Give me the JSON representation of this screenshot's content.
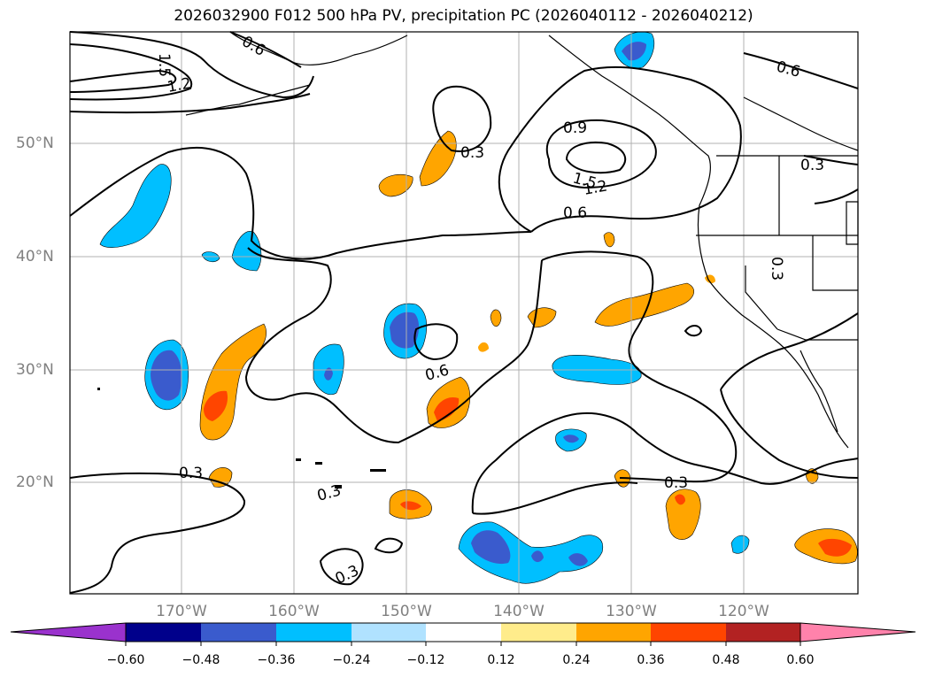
{
  "title": "2026032900 F012 500 hPa PV, precipitation PC (2026040112 - 2026040212)",
  "lat_labels": [
    "50°N",
    "40°N",
    "30°N",
    "20°N"
  ],
  "lon_labels": [
    "170°W",
    "160°W",
    "150°W",
    "140°W",
    "130°W",
    "120°W"
  ],
  "contour_labels": [
    "0.6",
    "1.5",
    "1.2",
    "0.3",
    "0.9",
    "1.5",
    "1.2",
    "0.6",
    "0.6",
    "0.3",
    "0.3",
    "0.6",
    "0.3",
    "0.3",
    "0.3",
    "0.3"
  ],
  "colorbar": {
    "ticks": [
      "−0.60",
      "−0.48",
      "−0.36",
      "−0.24",
      "−0.12",
      "0.12",
      "0.24",
      "0.36",
      "0.48",
      "0.60"
    ],
    "colors": [
      "#9a32cd",
      "#00008b",
      "#3a5bcd",
      "#00bfff",
      "#b0e2ff",
      "#ffffff",
      "#ffec8b",
      "#ffa500",
      "#ff4500",
      "#b22222",
      "#ff82ab"
    ]
  },
  "palette": {
    "neg_dark": "#3a5bcd",
    "neg_mid": "#00bfff",
    "neg_light": "#b0e2ff",
    "pos_light": "#ffec8b",
    "pos_mid": "#ffa500",
    "pos_dark": "#ff4500",
    "grid": "#b0b0b0",
    "label_gray": "#808080"
  }
}
